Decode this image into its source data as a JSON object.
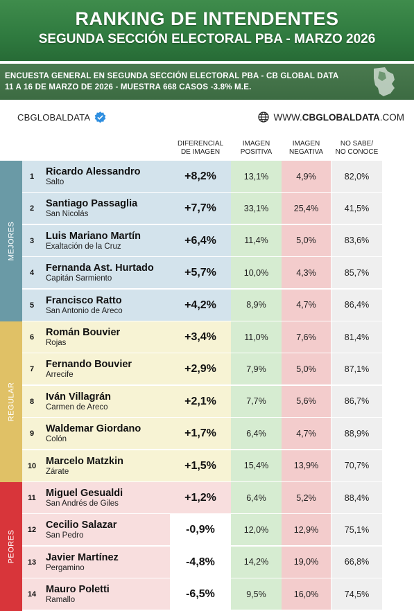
{
  "header": {
    "title": "RANKING DE INTENDENTES",
    "subtitle": "SEGUNDA SECCIÓN ELECTORAL PBA - MARZO 2026"
  },
  "survey": {
    "line1": "ENCUESTA GENERAL EN SEGUNDA SECCIÓN ELECTORAL PBA - CB GLOBAL DATA",
    "line2": "11 A 16 DE MARZO  DE 2026 - MUESTRA 668  CASOS -3.8% M.E."
  },
  "brand": {
    "name": "CBGLOBALDATA",
    "website_prefix": "WWW.",
    "website_bold": "CBGLOBALDATA",
    "website_suffix": ".COM"
  },
  "columns": {
    "diff": [
      "DIFERENCIAL",
      "DE IMAGEN"
    ],
    "positive": [
      "IMAGEN",
      "POSITIVA"
    ],
    "negative": [
      "IMAGEN",
      "NEGATIVA"
    ],
    "unknown": [
      "NO SABE/",
      "NO CONOCE"
    ]
  },
  "groups": [
    {
      "label": "MEJORES",
      "color": "#6a9aa6",
      "row_bg": "#d3e3ec",
      "start": 0,
      "count": 5
    },
    {
      "label": "REGULAR",
      "color": "#e0c166",
      "row_bg": "#f7f3d4",
      "start": 5,
      "count": 5
    },
    {
      "label": "PEORES",
      "color": "#d8353a",
      "row_bg": "#f8dede",
      "start": 10,
      "count": 4
    }
  ],
  "chart_data": {
    "type": "table",
    "title": "RANKING DE INTENDENTES",
    "columns": [
      "DIFERENCIAL DE IMAGEN",
      "IMAGEN POSITIVA",
      "IMAGEN NEGATIVA",
      "NO SABE/ NO CONOCE"
    ],
    "rows": [
      {
        "rank": "1",
        "name": "Ricardo Alessandro",
        "place": "Salto",
        "diff": "+8,2%",
        "positive": "13,1%",
        "negative": "4,9%",
        "unknown": "82,0%"
      },
      {
        "rank": "2",
        "name": "Santiago Passaglia",
        "place": "San Nicolás",
        "diff": "+7,7%",
        "positive": "33,1%",
        "negative": "25,4%",
        "unknown": "41,5%"
      },
      {
        "rank": "3",
        "name": "Luis Mariano Martín",
        "place": "Exaltación de la Cruz",
        "diff": "+6,4%",
        "positive": "11,4%",
        "negative": "5,0%",
        "unknown": "83,6%"
      },
      {
        "rank": "4",
        "name": "Fernanda Ast. Hurtado",
        "place": "Capitán Sarmiento",
        "diff": "+5,7%",
        "positive": "10,0%",
        "negative": "4,3%",
        "unknown": "85,7%"
      },
      {
        "rank": "5",
        "name": "Francisco Ratto",
        "place": "San Antonio de Areco",
        "diff": "+4,2%",
        "positive": "8,9%",
        "negative": "4,7%",
        "unknown": "86,4%"
      },
      {
        "rank": "6",
        "name": "Román Bouvier",
        "place": "Rojas",
        "diff": "+3,4%",
        "positive": "11,0%",
        "negative": "7,6%",
        "unknown": "81,4%"
      },
      {
        "rank": "7",
        "name": "Fernando Bouvier",
        "place": "Arrecife",
        "diff": "+2,9%",
        "positive": "7,9%",
        "negative": "5,0%",
        "unknown": "87,1%"
      },
      {
        "rank": "8",
        "name": "Iván Villagrán",
        "place": "Carmen de Areco",
        "diff": "+2,1%",
        "positive": "7,7%",
        "negative": "5,6%",
        "unknown": "86,7%"
      },
      {
        "rank": "9",
        "name": "Waldemar Giordano",
        "place": "Colón",
        "diff": "+1,7%",
        "positive": "6,4%",
        "negative": "4,7%",
        "unknown": "88,9%"
      },
      {
        "rank": "10",
        "name": "Marcelo Matzkin",
        "place": "Zárate",
        "diff": "+1,5%",
        "positive": "15,4%",
        "negative": "13,9%",
        "unknown": "70,7%"
      },
      {
        "rank": "11",
        "name": "Miguel Gesualdi",
        "place": "San Andrés de Giles",
        "diff": "+1,2%",
        "positive": "6,4%",
        "negative": "5,2%",
        "unknown": "88,4%"
      },
      {
        "rank": "12",
        "name": "Cecilio Salazar",
        "place": "San Pedro",
        "diff": "-0,9%",
        "positive": "12,0%",
        "negative": "12,9%",
        "unknown": "75,1%"
      },
      {
        "rank": "13",
        "name": "Javier Martínez",
        "place": "Pergamino",
        "diff": "-4,8%",
        "positive": "14,2%",
        "negative": "19,0%",
        "unknown": "66,8%"
      },
      {
        "rank": "14",
        "name": "Mauro Poletti",
        "place": "Ramallo",
        "diff": "-6,5%",
        "positive": "9,5%",
        "negative": "16,0%",
        "unknown": "74,5%"
      }
    ]
  }
}
